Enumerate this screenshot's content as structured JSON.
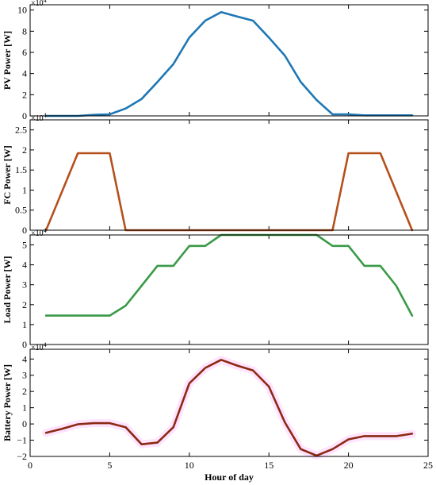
{
  "chart_data": [
    {
      "type": "line",
      "ylabel": "PV Power [W]",
      "xlabel": "",
      "xlim": [
        0,
        25
      ],
      "ylim": [
        0,
        10.5
      ],
      "yticks": [
        0,
        2,
        4,
        6,
        8,
        10
      ],
      "xticks": [
        0,
        5,
        10,
        15,
        20,
        25
      ],
      "show_xtick_labels": false,
      "multiplier": "×10",
      "multiplier_exp": "4",
      "grid": false,
      "color": "#1f77b4",
      "series": [
        {
          "x": [
            1,
            2,
            3,
            4,
            5,
            6,
            7,
            8,
            9,
            10,
            11,
            12,
            13,
            14,
            15,
            16,
            17,
            18,
            19,
            20,
            21,
            22,
            23,
            24
          ],
          "values": [
            0,
            0,
            0,
            0.1,
            0.15,
            0.7,
            1.6,
            3.2,
            4.9,
            7.4,
            9.0,
            9.8,
            9.4,
            9.0,
            7.4,
            5.7,
            3.2,
            1.5,
            0.15,
            0.15,
            0.05,
            0.05,
            0.05,
            0.05
          ]
        }
      ]
    },
    {
      "type": "line",
      "ylabel": "FC Power [W]",
      "xlabel": "",
      "xlim": [
        0,
        25
      ],
      "ylim": [
        0,
        2.75
      ],
      "yticks": [
        0,
        0.5,
        1,
        1.5,
        2,
        2.5
      ],
      "xticks": [
        0,
        5,
        10,
        15,
        20,
        25
      ],
      "show_xtick_labels": false,
      "multiplier": "×10",
      "multiplier_exp": "4",
      "grid": false,
      "color": "#b5501c",
      "series": [
        {
          "x": [
            1,
            3,
            5,
            6,
            19,
            20,
            22,
            24
          ],
          "values": [
            0,
            1.92,
            1.92,
            0,
            0,
            1.92,
            1.92,
            0
          ]
        }
      ]
    },
    {
      "type": "line",
      "ylabel": "Load Power [W]",
      "xlabel": "",
      "xlim": [
        0,
        25
      ],
      "ylim": [
        0,
        5.5
      ],
      "yticks": [
        0,
        1,
        2,
        3,
        4,
        5
      ],
      "xticks": [
        0,
        5,
        10,
        15,
        20,
        25
      ],
      "show_xtick_labels": false,
      "multiplier": "×10",
      "multiplier_exp": "4",
      "grid": false,
      "color": "#3a9a48",
      "series": [
        {
          "x": [
            1,
            2,
            3,
            4,
            5,
            6,
            7,
            8,
            9,
            10,
            11,
            12,
            13,
            14,
            15,
            16,
            17,
            18,
            19,
            20,
            21,
            22,
            23,
            24
          ],
          "values": [
            1.45,
            1.45,
            1.45,
            1.45,
            1.45,
            1.95,
            2.95,
            3.95,
            3.95,
            4.95,
            4.95,
            5.5,
            5.5,
            5.5,
            5.5,
            5.5,
            5.5,
            5.5,
            4.95,
            4.95,
            3.95,
            3.95,
            2.95,
            1.45
          ]
        }
      ]
    },
    {
      "type": "line",
      "ylabel": "Battery Power [W]",
      "xlabel": "Hour of day",
      "xlim": [
        0,
        25
      ],
      "ylim": [
        -2,
        4.6
      ],
      "yticks": [
        -2,
        -1,
        0,
        1,
        2,
        3,
        4
      ],
      "xticks": [
        0,
        5,
        10,
        15,
        20,
        25
      ],
      "show_xtick_labels": true,
      "multiplier": "×10",
      "multiplier_exp": "4",
      "grid": false,
      "color": "#8b2a12",
      "series": [
        {
          "x": [
            1,
            2,
            3,
            4,
            5,
            6,
            7,
            8,
            9,
            10,
            11,
            12,
            13,
            14,
            15,
            16,
            17,
            18,
            19,
            20,
            21,
            22,
            23,
            24
          ],
          "values": [
            -0.55,
            -0.3,
            -0.02,
            0.05,
            0.05,
            -0.2,
            -1.25,
            -1.15,
            -0.2,
            2.5,
            3.45,
            3.95,
            3.6,
            3.3,
            2.3,
            0.1,
            -1.55,
            -1.95,
            -1.55,
            -0.95,
            -0.75,
            -0.75,
            -0.75,
            -0.6
          ]
        }
      ]
    }
  ]
}
